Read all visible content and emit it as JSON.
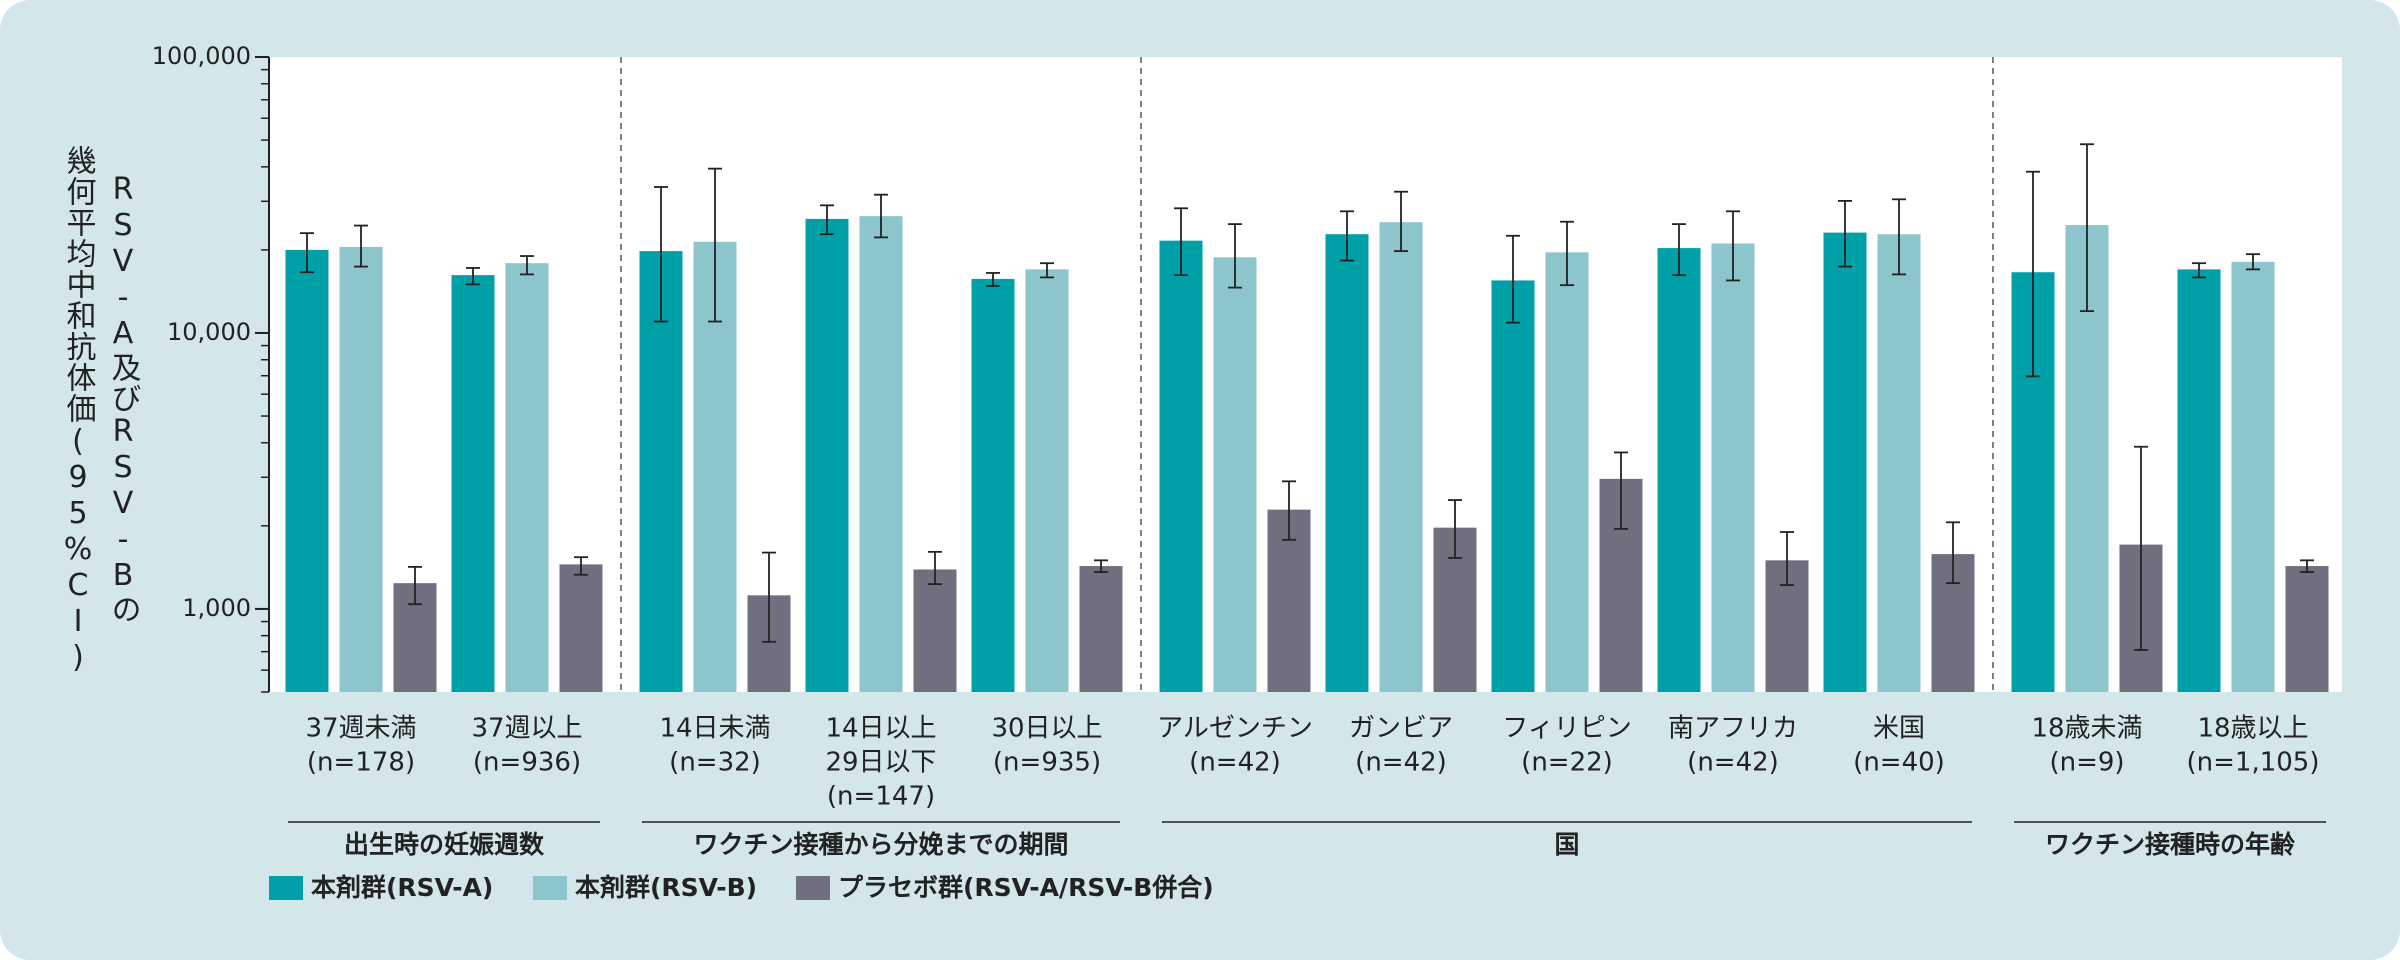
{
  "chart_data": {
    "type": "bar",
    "log_scale": true,
    "ylabel": [
      "RSV-A及びRSV-Bの",
      "幾何平均中和抗体価(95%CI)"
    ],
    "groups": [
      {
        "name": "出生時の妊娠週数",
        "categories": [
          [
            "37週未満",
            "(n=178)"
          ],
          [
            "37週以上",
            "(n=936)"
          ]
        ]
      },
      {
        "name": "ワクチン接種から分娩までの期間",
        "categories": [
          [
            "14日未満",
            "(n=32)"
          ],
          [
            "14日以上",
            "29日以下",
            "(n=147)"
          ],
          [
            "30日以上",
            "(n=935)"
          ]
        ]
      },
      {
        "name": "国",
        "categories": [
          [
            "アルゼンチン",
            "(n=42)"
          ],
          [
            "ガンビア",
            "(n=42)"
          ],
          [
            "フィリピン",
            "(n=22)"
          ],
          [
            "南アフリカ",
            "(n=42)"
          ],
          [
            "米国",
            "(n=40)"
          ]
        ]
      },
      {
        "name": "ワクチン接種時の年齢",
        "categories": [
          [
            "18歳未満",
            "(n=9)"
          ],
          [
            "18歳以上",
            "(n=1,105)"
          ]
        ]
      }
    ],
    "series": [
      {
        "name": "本剤群(RSV-A)",
        "color": "#00a0a8",
        "values": [
          20000,
          16200,
          19800,
          25900,
          15700,
          21600,
          22800,
          15500,
          20300,
          23100,
          16600,
          17000
        ],
        "lower": [
          16600,
          15000,
          11000,
          22800,
          14800,
          16200,
          18300,
          10900,
          16200,
          17400,
          6960,
          15900
        ],
        "upper": [
          23000,
          17200,
          33800,
          29000,
          16500,
          28300,
          27600,
          22500,
          24800,
          30100,
          38400,
          17900
        ]
      },
      {
        "name": "本剤群(RSV-B)",
        "color": "#8cc5cc",
        "values": [
          20500,
          17900,
          21400,
          26500,
          17000,
          18800,
          25200,
          19600,
          21100,
          22800,
          24600,
          18100
        ],
        "lower": [
          17400,
          16300,
          11000,
          22200,
          15900,
          14600,
          19800,
          14900,
          15500,
          16300,
          12000,
          17000
        ],
        "upper": [
          24500,
          19000,
          39400,
          31700,
          17900,
          24800,
          32500,
          25300,
          27600,
          30500,
          48300,
          19300
        ]
      },
      {
        "name": "プラセボ群(RSV-A/RSV-B併合)",
        "color": "#6f6f80",
        "values": [
          1240,
          1450,
          1120,
          1390,
          1430,
          2290,
          1970,
          2960,
          1500,
          1580,
          1710,
          1430
        ],
        "lower": [
          1040,
          1330,
          760,
          1230,
          1360,
          1780,
          1530,
          1950,
          1220,
          1240,
          710,
          1360
        ],
        "upper": [
          1420,
          1540,
          1600,
          1610,
          1500,
          2900,
          2480,
          3690,
          1900,
          2060,
          3870,
          1500
        ]
      }
    ],
    "ylim": [
      500,
      100000
    ],
    "yticks": [
      {
        "value": 1000,
        "label": "1,000"
      },
      {
        "value": 10000,
        "label": "10,000"
      },
      {
        "value": 100000,
        "label": "100,000"
      }
    ]
  }
}
